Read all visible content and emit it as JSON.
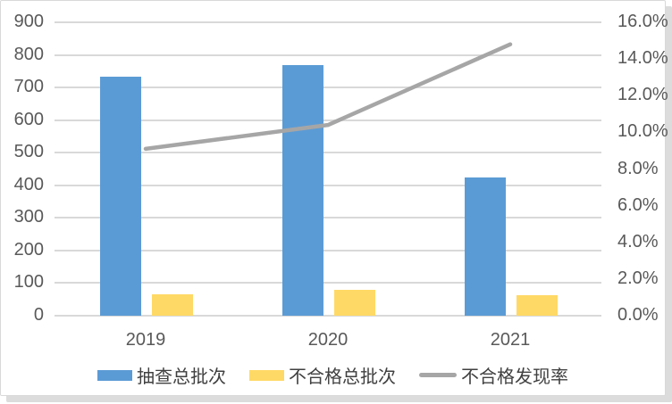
{
  "chart_data": {
    "type": "combo-bar-line",
    "title": "",
    "categories": [
      "2019",
      "2020",
      "2021"
    ],
    "series": [
      {
        "key": "sampled-batches",
        "name": "抽查总批次",
        "type": "bar",
        "axis": "left",
        "color": "#5B9BD5",
        "values": [
          733,
          770,
          425
        ]
      },
      {
        "key": "unqualified-batches",
        "name": "不合格总批次",
        "type": "bar",
        "axis": "left",
        "color": "#FFD966",
        "values": [
          67,
          80,
          63
        ]
      },
      {
        "key": "defect-rate",
        "name": "不合格发现率",
        "type": "line",
        "axis": "right",
        "color": "#A6A6A6",
        "values_pct": [
          9.1,
          10.4,
          14.8
        ]
      }
    ],
    "left_axis": {
      "min": 0,
      "max": 900,
      "step": 100,
      "tick_labels": [
        "900",
        "800",
        "700",
        "600",
        "500",
        "400",
        "300",
        "200",
        "100",
        "0"
      ]
    },
    "right_axis": {
      "min": 0,
      "max": 16,
      "step": 2,
      "tick_labels": [
        "16.0%",
        "14.0%",
        "12.0%",
        "10.0%",
        "8.0%",
        "6.0%",
        "4.0%",
        "2.0%",
        "0.0%"
      ]
    },
    "grid": true,
    "legend_position": "bottom"
  },
  "colors": {
    "gridline": "#D9D9D9",
    "tick_text": "#595959",
    "legend_text": "#404040",
    "panel_border": "#D9D9D9",
    "panel_shadow": "#DCDCDC",
    "background": "#FFFFFF"
  }
}
